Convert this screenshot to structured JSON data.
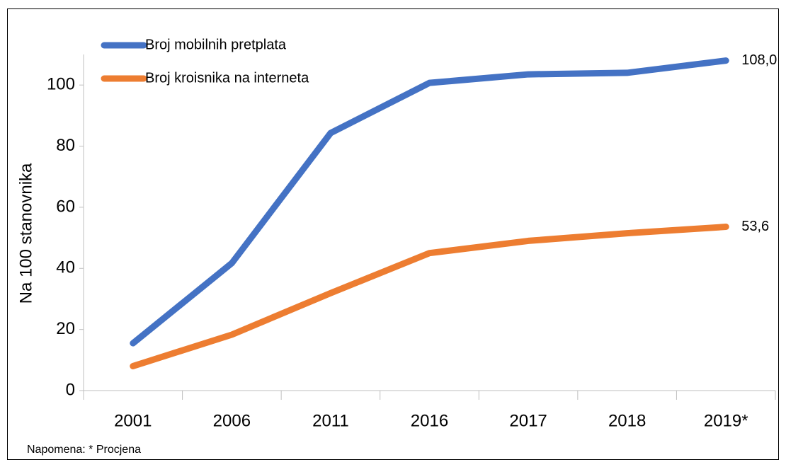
{
  "chart_data": {
    "type": "line",
    "y_label": "Na 100 stanovnika",
    "note": "Napomena: * Procjena",
    "categories": [
      "2001",
      "2006",
      "2011",
      "2016",
      "2017",
      "2018",
      "2019*"
    ],
    "series": [
      {
        "name": "Broj mobilnih pretplata",
        "color": "#4472c4",
        "values": [
          15.5,
          41.7,
          84.3,
          100.7,
          103.5,
          104,
          108.0
        ],
        "value_labels": [
          null,
          null,
          null,
          null,
          null,
          null,
          "108,0"
        ]
      },
      {
        "name": "Broj kroisnika na interneta",
        "color": "#ed7d31",
        "values": [
          8,
          18.3,
          31.9,
          45,
          49,
          51.5,
          53.6
        ],
        "value_labels": [
          null,
          null,
          null,
          null,
          null,
          null,
          "53,6"
        ]
      }
    ],
    "ylim": [
      0,
      110
    ],
    "yticks": [
      0,
      20,
      40,
      60,
      80,
      100
    ],
    "grid": false
  }
}
